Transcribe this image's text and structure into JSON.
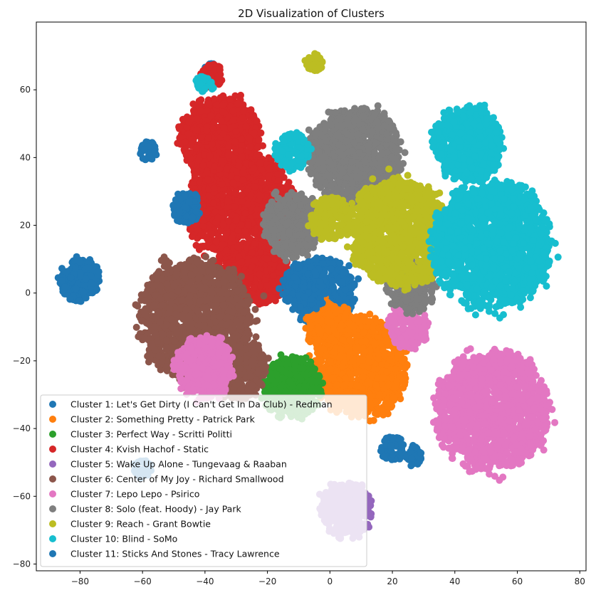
{
  "chart_data": {
    "type": "scatter",
    "title": "2D Visualization of Clusters",
    "xlabel": "",
    "ylabel": "",
    "xlim": [
      -94,
      82
    ],
    "ylim": [
      -82,
      80
    ],
    "xticks": [
      -80,
      -60,
      -40,
      -20,
      0,
      20,
      40,
      60,
      80
    ],
    "yticks": [
      -80,
      -60,
      -40,
      -20,
      0,
      20,
      40,
      60
    ],
    "grid": false,
    "legend_position": "lower-left",
    "series": [
      {
        "name": "Cluster 1: Let's Get Dirty (I Can't Get In Da Club) - Redman",
        "color": "#1f77b4",
        "blobs": [
          {
            "cx": -80,
            "cy": 4,
            "r": 7
          },
          {
            "cx": -2,
            "cy": 0,
            "r": 11
          },
          {
            "cx": -58,
            "cy": 42,
            "r": 3
          },
          {
            "cx": -38,
            "cy": 66,
            "r": 2
          },
          {
            "cx": 20,
            "cy": -46,
            "r": 4
          },
          {
            "cx": 27,
            "cy": -48,
            "r": 3
          }
        ]
      },
      {
        "name": "Cluster 2: Something Pretty - Patrick Park",
        "color": "#ff7f0e",
        "blobs": [
          {
            "cx": 10,
            "cy": -22,
            "r": 16
          },
          {
            "cx": 0,
            "cy": -10,
            "r": 8
          }
        ]
      },
      {
        "name": "Cluster 3: Perfect Way - Scritti Politti",
        "color": "#2ca02c",
        "blobs": [
          {
            "cx": -12,
            "cy": -28,
            "r": 10
          }
        ]
      },
      {
        "name": "Cluster 4: Kvish Hachof - Static",
        "color": "#d62728",
        "blobs": [
          {
            "cx": -28,
            "cy": 24,
            "r": 18
          },
          {
            "cx": -35,
            "cy": 45,
            "r": 14
          },
          {
            "cx": -22,
            "cy": 6,
            "r": 10
          },
          {
            "cx": -38,
            "cy": 64,
            "r": 4
          }
        ]
      },
      {
        "name": "Cluster 5: Wake Up Alone - Tungevaag & Raaban",
        "color": "#9467bd",
        "blobs": [
          {
            "cx": 5,
            "cy": -64,
            "r": 9
          }
        ]
      },
      {
        "name": "Cluster 6: Center of My Joy - Richard Smallwood",
        "color": "#8c564b",
        "blobs": [
          {
            "cx": -43,
            "cy": -8,
            "r": 19
          },
          {
            "cx": -30,
            "cy": -22,
            "r": 10
          }
        ]
      },
      {
        "name": "Cluster 7: Lepo Lepo - Psirico",
        "color": "#e377c2",
        "blobs": [
          {
            "cx": 52,
            "cy": -35,
            "r": 19
          },
          {
            "cx": -40,
            "cy": -22,
            "r": 10
          },
          {
            "cx": 25,
            "cy": -10,
            "r": 7
          }
        ]
      },
      {
        "name": "Cluster 8: Solo (feat. Hoody) - Jay Park",
        "color": "#7f7f7f",
        "blobs": [
          {
            "cx": 8,
            "cy": 40,
            "r": 16
          },
          {
            "cx": -12,
            "cy": 20,
            "r": 10
          },
          {
            "cx": 26,
            "cy": 2,
            "r": 8
          }
        ]
      },
      {
        "name": "Cluster 9: Reach - Grant Bowtie",
        "color": "#bcbd22",
        "blobs": [
          {
            "cx": 22,
            "cy": 18,
            "r": 17
          },
          {
            "cx": 0,
            "cy": 22,
            "r": 7
          },
          {
            "cx": -5,
            "cy": 68,
            "r": 3
          }
        ]
      },
      {
        "name": "Cluster 10: Blind - SoMo",
        "color": "#17becf",
        "blobs": [
          {
            "cx": 52,
            "cy": 14,
            "r": 20
          },
          {
            "cx": 44,
            "cy": 44,
            "r": 12
          },
          {
            "cx": -40,
            "cy": 62,
            "r": 3
          },
          {
            "cx": -12,
            "cy": 42,
            "r": 6
          }
        ]
      },
      {
        "name": "Cluster 11: Sticks And Stones - Tracy Lawrence",
        "color": "#1f77b4",
        "blobs": [
          {
            "cx": -8,
            "cy": 2,
            "r": 8
          },
          {
            "cx": -46,
            "cy": 25,
            "r": 5
          },
          {
            "cx": -60,
            "cy": -52,
            "r": 3
          }
        ]
      }
    ]
  }
}
